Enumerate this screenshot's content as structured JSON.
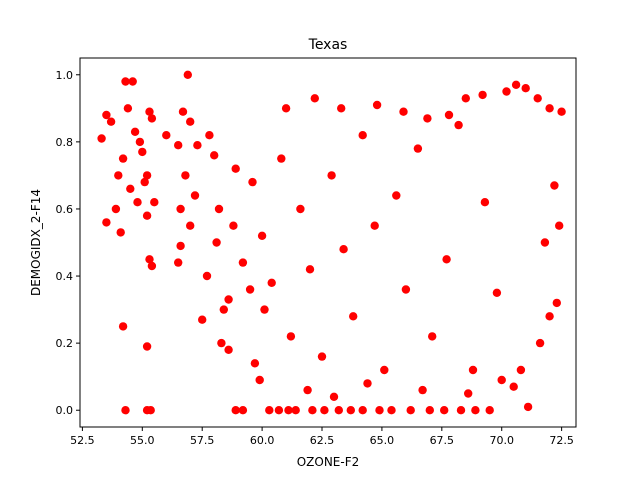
{
  "chart_data": {
    "type": "scatter",
    "title": "Texas",
    "xlabel": "OZONE-F2",
    "ylabel": "DEMOGIDX_2-F14",
    "xlim": [
      52.4,
      73.1
    ],
    "ylim": [
      -0.05,
      1.05
    ],
    "xticks": [
      52.5,
      55.0,
      57.5,
      60.0,
      62.5,
      65.0,
      67.5,
      70.0,
      72.5
    ],
    "xtick_labels": [
      "52.5",
      "55.0",
      "57.5",
      "60.0",
      "62.5",
      "65.0",
      "67.5",
      "70.0",
      "72.5"
    ],
    "yticks": [
      0.0,
      0.2,
      0.4,
      0.6,
      0.8,
      1.0
    ],
    "ytick_labels": [
      "0.0",
      "0.2",
      "0.4",
      "0.6",
      "0.8",
      "1.0"
    ],
    "grid": false,
    "legend": "none",
    "marker_color": "#ff0000",
    "series": [
      {
        "points": [
          [
            53.3,
            0.81
          ],
          [
            53.5,
            0.88
          ],
          [
            53.7,
            0.86
          ],
          [
            53.5,
            0.56
          ],
          [
            53.9,
            0.6
          ],
          [
            54.0,
            0.7
          ],
          [
            54.1,
            0.53
          ],
          [
            54.2,
            0.75
          ],
          [
            54.3,
            0.98
          ],
          [
            54.6,
            0.98
          ],
          [
            54.4,
            0.9
          ],
          [
            54.7,
            0.83
          ],
          [
            54.9,
            0.8
          ],
          [
            55.0,
            0.77
          ],
          [
            55.1,
            0.68
          ],
          [
            55.2,
            0.7
          ],
          [
            55.3,
            0.89
          ],
          [
            55.4,
            0.87
          ],
          [
            55.5,
            0.62
          ],
          [
            55.3,
            0.45
          ],
          [
            55.4,
            0.43
          ],
          [
            55.2,
            0.58
          ],
          [
            54.8,
            0.62
          ],
          [
            54.5,
            0.66
          ],
          [
            54.2,
            0.25
          ],
          [
            54.3,
            0.0
          ],
          [
            55.2,
            0.0
          ],
          [
            55.35,
            0.0
          ],
          [
            55.2,
            0.19
          ],
          [
            56.0,
            0.82
          ],
          [
            56.5,
            0.79
          ],
          [
            56.9,
            1.0
          ],
          [
            56.7,
            0.89
          ],
          [
            57.0,
            0.86
          ],
          [
            56.8,
            0.7
          ],
          [
            56.6,
            0.6
          ],
          [
            56.5,
            0.44
          ],
          [
            56.6,
            0.49
          ],
          [
            57.0,
            0.55
          ],
          [
            57.2,
            0.64
          ],
          [
            57.3,
            0.79
          ],
          [
            57.5,
            0.27
          ],
          [
            57.7,
            0.4
          ],
          [
            57.8,
            0.82
          ],
          [
            58.0,
            0.76
          ],
          [
            58.1,
            0.5
          ],
          [
            58.2,
            0.6
          ],
          [
            58.3,
            0.2
          ],
          [
            58.4,
            0.3
          ],
          [
            58.6,
            0.18
          ],
          [
            58.8,
            0.55
          ],
          [
            58.9,
            0.0
          ],
          [
            59.2,
            0.0
          ],
          [
            59.5,
            0.36
          ],
          [
            59.7,
            0.14
          ],
          [
            60.1,
            0.3
          ],
          [
            60.3,
            0.0
          ],
          [
            60.7,
            0.0
          ],
          [
            61.1,
            0.0
          ],
          [
            61.4,
            0.0
          ],
          [
            62.1,
            0.0
          ],
          [
            62.6,
            0.0
          ],
          [
            63.2,
            0.0
          ],
          [
            63.7,
            0.0
          ],
          [
            64.2,
            0.0
          ],
          [
            64.9,
            0.0
          ],
          [
            65.4,
            0.0
          ],
          [
            66.2,
            0.0
          ],
          [
            67.0,
            0.0
          ],
          [
            67.6,
            0.0
          ],
          [
            68.3,
            0.0
          ],
          [
            68.9,
            0.0
          ],
          [
            69.5,
            0.0
          ],
          [
            61.0,
            0.9
          ],
          [
            62.2,
            0.93
          ],
          [
            63.3,
            0.9
          ],
          [
            64.8,
            0.91
          ],
          [
            65.9,
            0.89
          ],
          [
            66.9,
            0.87
          ],
          [
            67.8,
            0.88
          ],
          [
            68.5,
            0.93
          ],
          [
            69.2,
            0.94
          ],
          [
            70.2,
            0.95
          ],
          [
            70.6,
            0.97
          ],
          [
            71.0,
            0.96
          ],
          [
            71.5,
            0.93
          ],
          [
            72.0,
            0.9
          ],
          [
            72.5,
            0.89
          ],
          [
            71.1,
            0.01
          ],
          [
            72.2,
            0.67
          ],
          [
            72.4,
            0.55
          ],
          [
            72.0,
            0.28
          ],
          [
            71.6,
            0.2
          ],
          [
            71.8,
            0.5
          ],
          [
            70.8,
            0.12
          ],
          [
            70.5,
            0.07
          ],
          [
            69.8,
            0.35
          ],
          [
            69.3,
            0.62
          ],
          [
            68.8,
            0.12
          ],
          [
            68.2,
            0.85
          ],
          [
            67.7,
            0.45
          ],
          [
            67.1,
            0.22
          ],
          [
            66.5,
            0.78
          ],
          [
            66.0,
            0.36
          ],
          [
            65.6,
            0.64
          ],
          [
            65.1,
            0.12
          ],
          [
            64.7,
            0.55
          ],
          [
            64.2,
            0.82
          ],
          [
            63.8,
            0.28
          ],
          [
            63.4,
            0.48
          ],
          [
            62.9,
            0.7
          ],
          [
            62.5,
            0.16
          ],
          [
            62.0,
            0.42
          ],
          [
            61.6,
            0.6
          ],
          [
            61.2,
            0.22
          ],
          [
            60.8,
            0.75
          ],
          [
            60.4,
            0.38
          ],
          [
            60.0,
            0.52
          ],
          [
            59.6,
            0.68
          ],
          [
            59.2,
            0.44
          ],
          [
            58.9,
            0.72
          ],
          [
            58.6,
            0.33
          ],
          [
            61.9,
            0.06
          ],
          [
            63.0,
            0.04
          ],
          [
            64.4,
            0.08
          ],
          [
            66.7,
            0.06
          ],
          [
            68.6,
            0.05
          ],
          [
            70.0,
            0.09
          ],
          [
            59.9,
            0.09
          ],
          [
            72.3,
            0.32
          ]
        ]
      }
    ]
  }
}
